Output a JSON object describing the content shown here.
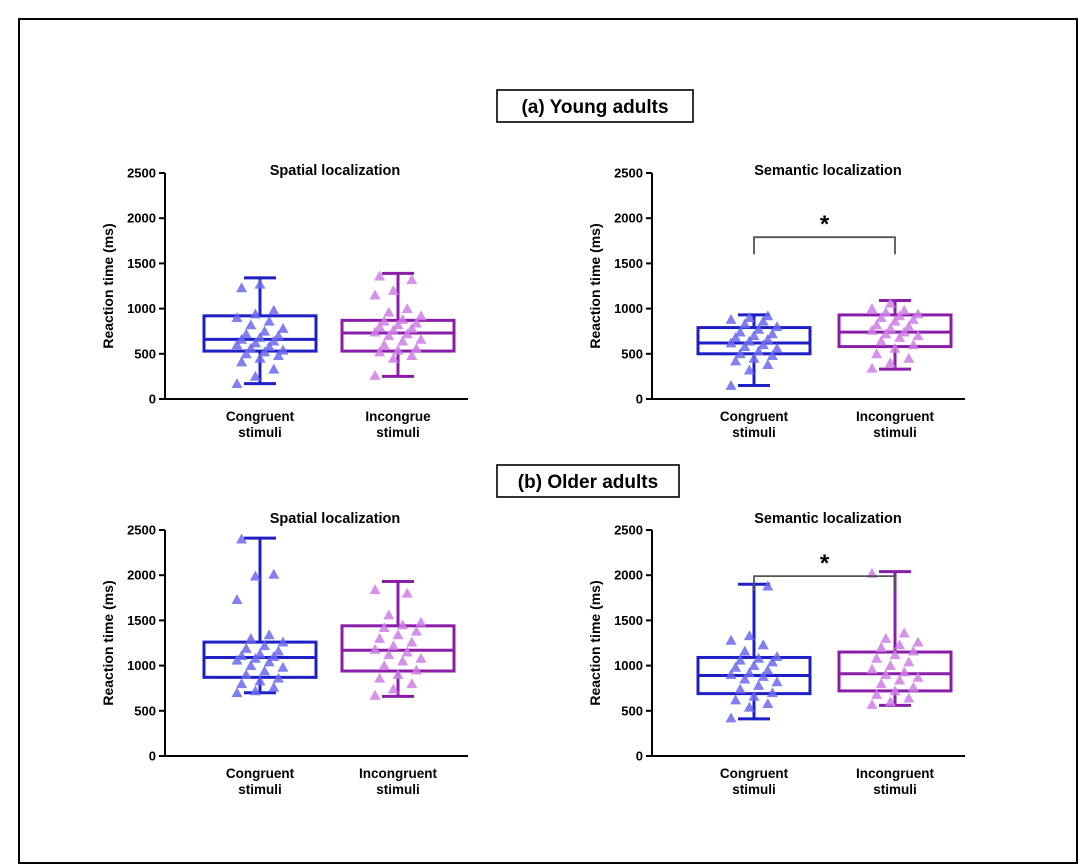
{
  "sections": [
    {
      "title": "(a) Young adults"
    },
    {
      "title": "(b) Older adults"
    }
  ],
  "colors": {
    "congruent": "#1f1fc8",
    "congruent_points": "#6a6af0",
    "incongruent": "#8a1ea8",
    "incongruent_points": "#cf7ee6"
  },
  "chart_data": [
    {
      "type": "box",
      "section": "(a) Young adults",
      "title": "Spatial localization",
      "ylabel": "Reaction time (ms)",
      "ylim": [
        0,
        2500
      ],
      "yticks": [
        "0",
        "500",
        "1000",
        "1500",
        "2000",
        "2500"
      ],
      "significance": "",
      "series": [
        {
          "category": "Congruent\nstimuli",
          "min": 170,
          "q1": 530,
          "median": 660,
          "q3": 920,
          "max": 1340,
          "points": [
            170,
            250,
            330,
            410,
            450,
            480,
            500,
            520,
            540,
            560,
            580,
            600,
            620,
            640,
            660,
            680,
            700,
            720,
            750,
            780,
            820,
            860,
            900,
            940,
            980,
            1230,
            1270
          ]
        },
        {
          "category": "Incongrue\nstimuli",
          "min": 250,
          "q1": 530,
          "median": 730,
          "q3": 870,
          "max": 1390,
          "points": [
            260,
            450,
            480,
            520,
            540,
            560,
            600,
            640,
            660,
            700,
            720,
            740,
            760,
            780,
            800,
            820,
            840,
            860,
            880,
            920,
            960,
            1000,
            1150,
            1200,
            1320,
            1360
          ]
        }
      ]
    },
    {
      "type": "box",
      "section": "(a) Young adults",
      "title": "Semantic localization",
      "ylabel": "Reaction time (ms)",
      "ylim": [
        0,
        2500
      ],
      "yticks": [
        "0",
        "500",
        "1000",
        "1500",
        "2000",
        "2500"
      ],
      "significance": "*",
      "series": [
        {
          "category": "Congruent\nstimuli",
          "min": 150,
          "q1": 500,
          "median": 620,
          "q3": 790,
          "max": 930,
          "points": [
            150,
            320,
            380,
            420,
            450,
            480,
            500,
            530,
            560,
            580,
            600,
            620,
            640,
            660,
            680,
            700,
            720,
            740,
            770,
            800,
            830,
            860,
            880,
            900,
            920
          ]
        },
        {
          "category": "Incongruent\nstimuli",
          "min": 330,
          "q1": 580,
          "median": 740,
          "q3": 930,
          "max": 1090,
          "points": [
            340,
            400,
            450,
            500,
            560,
            600,
            640,
            680,
            700,
            720,
            740,
            760,
            780,
            800,
            820,
            860,
            880,
            900,
            920,
            940,
            960,
            980,
            1000,
            1060
          ]
        }
      ]
    },
    {
      "type": "box",
      "section": "(b) Older adults",
      "title": "Spatial localization",
      "ylabel": "Reaction time (ms)",
      "ylim": [
        0,
        2500
      ],
      "yticks": [
        "0",
        "500",
        "1000",
        "1500",
        "2000",
        "2500"
      ],
      "significance": "",
      "series": [
        {
          "category": "Congruent\nstimuli",
          "min": 700,
          "q1": 870,
          "median": 1090,
          "q3": 1260,
          "max": 2410,
          "points": [
            700,
            720,
            760,
            800,
            830,
            860,
            900,
            940,
            980,
            1000,
            1040,
            1060,
            1080,
            1100,
            1110,
            1130,
            1160,
            1190,
            1220,
            1260,
            1300,
            1340,
            1730,
            1990,
            2010,
            2400
          ]
        },
        {
          "category": "Incongruent\nstimuli",
          "min": 660,
          "q1": 940,
          "median": 1170,
          "q3": 1440,
          "max": 1930,
          "points": [
            670,
            740,
            800,
            860,
            900,
            950,
            1000,
            1050,
            1080,
            1120,
            1150,
            1180,
            1220,
            1260,
            1300,
            1340,
            1380,
            1420,
            1450,
            1480,
            1560,
            1800,
            1840
          ]
        }
      ]
    },
    {
      "type": "box",
      "section": "(b) Older adults",
      "title": "Semantic localization",
      "ylabel": "Reaction time (ms)",
      "ylim": [
        0,
        2500
      ],
      "yticks": [
        "0",
        "500",
        "1000",
        "1500",
        "2000",
        "2500"
      ],
      "significance": "*",
      "series": [
        {
          "category": "Congruent\nstimuli",
          "min": 410,
          "q1": 690,
          "median": 890,
          "q3": 1090,
          "max": 1900,
          "points": [
            420,
            540,
            580,
            620,
            660,
            700,
            740,
            780,
            820,
            850,
            880,
            900,
            920,
            950,
            980,
            1000,
            1040,
            1060,
            1080,
            1100,
            1160,
            1230,
            1280,
            1330,
            1880
          ]
        },
        {
          "category": "Incongruent\nstimuli",
          "min": 560,
          "q1": 720,
          "median": 910,
          "q3": 1150,
          "max": 2040,
          "points": [
            570,
            600,
            640,
            680,
            720,
            760,
            800,
            840,
            870,
            900,
            930,
            960,
            1000,
            1040,
            1080,
            1120,
            1160,
            1200,
            1230,
            1260,
            1300,
            1360,
            2020
          ]
        }
      ]
    }
  ]
}
